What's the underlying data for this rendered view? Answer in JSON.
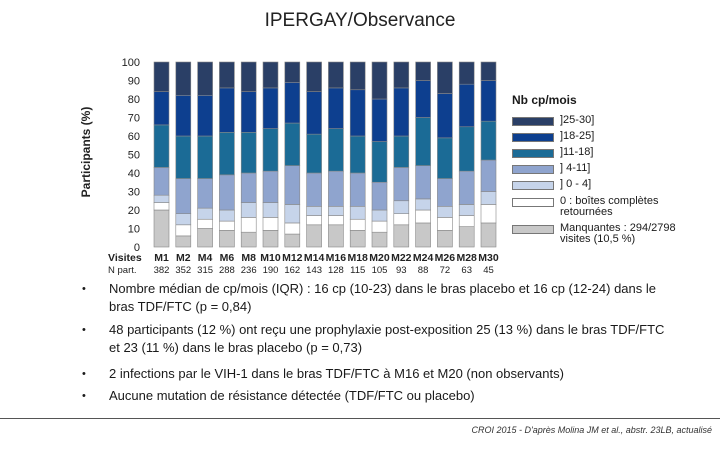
{
  "title": "IPERGAY/Observance",
  "chart_data": {
    "type": "bar",
    "stacked": true,
    "ylabel": "Participants (%)",
    "ylim": [
      0,
      100
    ],
    "yticks": [
      0,
      10,
      20,
      30,
      40,
      50,
      60,
      70,
      80,
      90,
      100
    ],
    "row_label_visits": "Visites",
    "row_label_n": "N part.",
    "categories": [
      "M1",
      "M2",
      "M4",
      "M6",
      "M8",
      "M10",
      "M12",
      "M14",
      "M16",
      "M18",
      "M20",
      "M22",
      "M24",
      "M26",
      "M28",
      "M30"
    ],
    "n_participants": [
      "382",
      "352",
      "315",
      "288",
      "236",
      "190",
      "162",
      "143",
      "128",
      "115",
      "105",
      "93",
      "88",
      "72",
      "63",
      "45"
    ],
    "legend_title": "Nb cp/mois",
    "series": [
      {
        "name": "Manquantes : 294/2798 visites (10,5 %)",
        "color": "#c8c8c8",
        "values": [
          20,
          6,
          10,
          9,
          8,
          9,
          7,
          12,
          12,
          9,
          8,
          12,
          13,
          9,
          11,
          13
        ]
      },
      {
        "name": "0 : boîtes complètes retournées",
        "color": "#ffffff",
        "values": [
          4,
          6,
          5,
          5,
          8,
          7,
          6,
          5,
          5,
          6,
          6,
          6,
          7,
          7,
          6,
          10
        ]
      },
      {
        "name": "] 0 - 4]",
        "color": "#c6d4ea",
        "values": [
          4,
          6,
          6,
          6,
          8,
          8,
          10,
          5,
          5,
          7,
          6,
          7,
          6,
          6,
          6,
          7
        ]
      },
      {
        "name": "] 4-11]",
        "color": "#8fa4ce",
        "values": [
          15,
          19,
          16,
          19,
          16,
          17,
          21,
          18,
          19,
          18,
          15,
          18,
          18,
          15,
          18,
          17
        ]
      },
      {
        "name": "]11-18]",
        "color": "#1b6b96",
        "values": [
          23,
          23,
          23,
          23,
          22,
          23,
          23,
          21,
          23,
          20,
          22,
          17,
          26,
          22,
          24,
          21
        ]
      },
      {
        "name": "]18-25]",
        "color": "#0d3f8f",
        "values": [
          18,
          22,
          22,
          24,
          22,
          22,
          22,
          23,
          22,
          25,
          23,
          26,
          20,
          24,
          23,
          22
        ]
      },
      {
        "name": "]25-30]",
        "color": "#2a3f66",
        "values": [
          16,
          18,
          18,
          14,
          16,
          14,
          11,
          16,
          14,
          15,
          20,
          14,
          10,
          17,
          12,
          10
        ]
      }
    ]
  },
  "legend": {
    "title": "Nb cp/mois",
    "items": [
      {
        "label": "]25-30]",
        "color": "#2a3f66"
      },
      {
        "label": "]18-25]",
        "color": "#0d3f8f"
      },
      {
        "label": "]11-18]",
        "color": "#1b6b96"
      },
      {
        "label": "] 4-11]",
        "color": "#8fa4ce"
      },
      {
        "label": "] 0 - 4]",
        "color": "#c6d4ea"
      },
      {
        "label": "0 : boîtes complètes retournées",
        "color": "#ffffff"
      },
      {
        "label": "Manquantes : 294/2798 visites (10,5 %)",
        "color": "#c8c8c8"
      }
    ]
  },
  "bullets": [
    {
      "symbol": "•",
      "text": "Nombre médian de cp/mois (IQR) : 16 cp (10-23) dans le bras placebo et 16 cp (12-24) dans le bras TDF/FTC (p = 0,84)"
    },
    {
      "symbol": "•",
      "text": "48 participants (12 %) ont reçu une prophylaxie post-exposition 25 (13 %) dans le bras TDF/FTC et 23 (11 %) dans le bras placebo (p = 0,73)"
    },
    {
      "symbol": "•",
      "text": "2 infections par le VIH-1 dans le bras TDF/FTC à M16 et M20 (non observants)"
    },
    {
      "symbol": "•",
      "text": "Aucune mutation de résistance détectée (TDF/FTC ou placebo)"
    }
  ],
  "footer": "CROI 2015 - D'après Molina JM et al., abstr. 23LB, actualisé"
}
